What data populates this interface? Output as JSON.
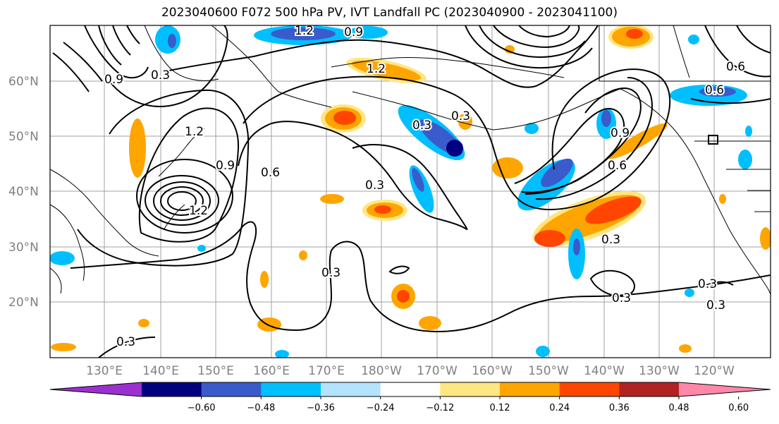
{
  "title": "2023040600 F072 500 hPa PV, IVT Landfall PC (2023040900 - 2023041100)",
  "map": {
    "lat_labels": [
      "60°N",
      "50°N",
      "40°N",
      "30°N",
      "20°N"
    ],
    "lon_labels": [
      "130°E",
      "140°E",
      "150°E",
      "160°E",
      "170°E",
      "180°W",
      "170°W",
      "160°W",
      "150°W",
      "140°W",
      "130°W",
      "120°W"
    ],
    "contour_labels": [
      "1.2",
      "0.9",
      "1.2",
      "0.9",
      "0.3",
      "1.2",
      "0.6",
      "1.2",
      "0.9",
      "0.6",
      "0.3",
      "0.3",
      "0.3",
      "0.3",
      "0.3",
      "0.3",
      "0.3",
      "0.9",
      "0.6",
      "0.6",
      "0.3",
      "0.3"
    ]
  },
  "colorbar": {
    "tick_labels": [
      "−0.60",
      "−0.48",
      "−0.36",
      "−0.24",
      "−0.12",
      "0.12",
      "0.24",
      "0.36",
      "0.48",
      "0.60"
    ],
    "colors": [
      "#9b30d0",
      "#000080",
      "#3a5bcc",
      "#00bfff",
      "#b3e3ff",
      "#ffffff",
      "#ffe680",
      "#ffa500",
      "#ff4500",
      "#b22222",
      "#ff88aa"
    ]
  }
}
